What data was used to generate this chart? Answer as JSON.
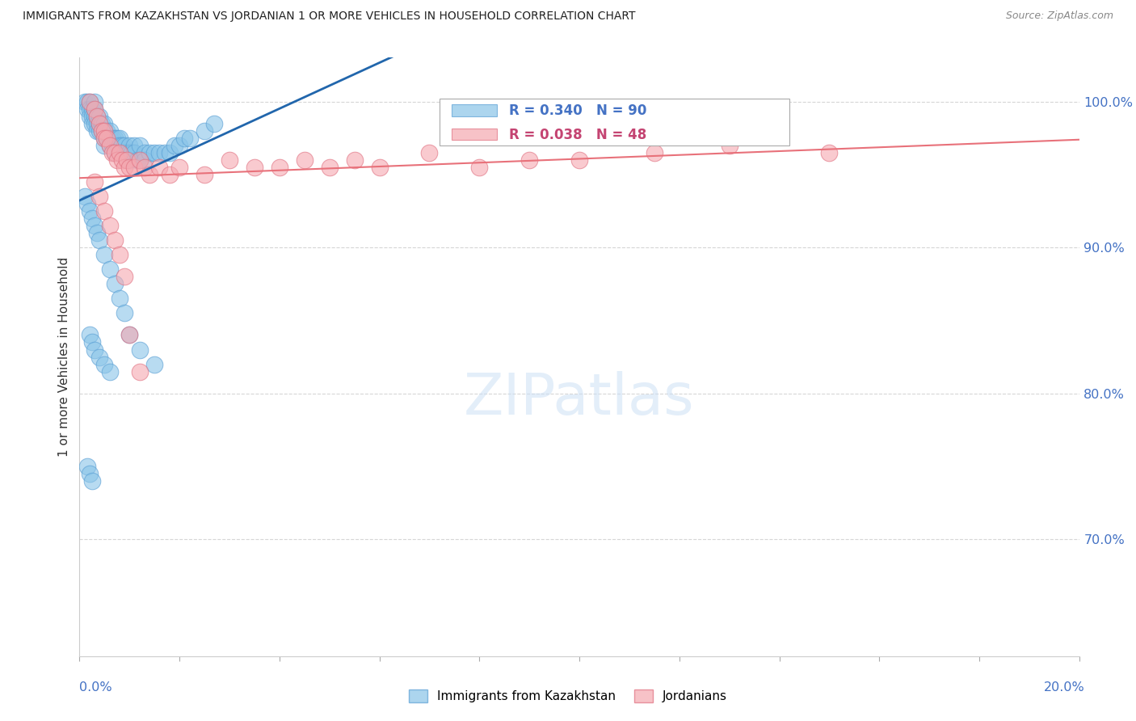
{
  "title": "IMMIGRANTS FROM KAZAKHSTAN VS JORDANIAN 1 OR MORE VEHICLES IN HOUSEHOLD CORRELATION CHART",
  "source": "Source: ZipAtlas.com",
  "ylabel": "1 or more Vehicles in Household",
  "legend_blue_label": "Immigrants from Kazakhstan",
  "legend_pink_label": "Jordanians",
  "blue_color": "#89c4e8",
  "blue_edge_color": "#5a9fd4",
  "pink_color": "#f5a8b0",
  "pink_edge_color": "#e07080",
  "blue_line_color": "#2166ac",
  "pink_line_color": "#e8717a",
  "x_min": 0.0,
  "x_max": 20.0,
  "y_min": 62.0,
  "y_max": 103.0,
  "blue_scatter_x": [
    0.1,
    0.15,
    0.15,
    0.2,
    0.2,
    0.2,
    0.25,
    0.25,
    0.25,
    0.3,
    0.3,
    0.3,
    0.3,
    0.35,
    0.35,
    0.35,
    0.4,
    0.4,
    0.4,
    0.45,
    0.45,
    0.5,
    0.5,
    0.5,
    0.5,
    0.55,
    0.55,
    0.6,
    0.6,
    0.6,
    0.65,
    0.65,
    0.7,
    0.7,
    0.7,
    0.75,
    0.75,
    0.8,
    0.8,
    0.85,
    0.85,
    0.9,
    0.9,
    0.95,
    1.0,
    1.0,
    1.0,
    1.05,
    1.1,
    1.1,
    1.15,
    1.2,
    1.2,
    1.3,
    1.3,
    1.4,
    1.5,
    1.6,
    1.7,
    1.8,
    1.9,
    2.0,
    2.1,
    2.2,
    2.5,
    2.7,
    0.1,
    0.15,
    0.2,
    0.25,
    0.3,
    0.35,
    0.4,
    0.5,
    0.6,
    0.7,
    0.8,
    0.9,
    1.0,
    1.2,
    1.5,
    0.2,
    0.25,
    0.3,
    0.4,
    0.5,
    0.6,
    0.15,
    0.2,
    0.25
  ],
  "blue_scatter_y": [
    100.0,
    100.0,
    99.5,
    100.0,
    99.5,
    99.0,
    99.5,
    99.0,
    98.5,
    100.0,
    99.5,
    99.0,
    98.5,
    99.0,
    98.5,
    98.0,
    99.0,
    98.5,
    98.0,
    98.5,
    98.0,
    98.5,
    98.0,
    97.5,
    97.0,
    98.0,
    97.5,
    98.0,
    97.5,
    97.0,
    97.5,
    97.0,
    97.5,
    97.0,
    96.5,
    97.5,
    97.0,
    97.5,
    97.0,
    97.0,
    96.5,
    97.0,
    96.5,
    96.5,
    97.0,
    96.5,
    96.0,
    96.5,
    97.0,
    96.5,
    96.0,
    97.0,
    96.0,
    96.5,
    96.0,
    96.5,
    96.5,
    96.5,
    96.5,
    96.5,
    97.0,
    97.0,
    97.5,
    97.5,
    98.0,
    98.5,
    93.5,
    93.0,
    92.5,
    92.0,
    91.5,
    91.0,
    90.5,
    89.5,
    88.5,
    87.5,
    86.5,
    85.5,
    84.0,
    83.0,
    82.0,
    84.0,
    83.5,
    83.0,
    82.5,
    82.0,
    81.5,
    75.0,
    74.5,
    74.0
  ],
  "pink_scatter_x": [
    0.2,
    0.3,
    0.35,
    0.4,
    0.45,
    0.5,
    0.5,
    0.55,
    0.6,
    0.65,
    0.7,
    0.75,
    0.8,
    0.85,
    0.9,
    0.95,
    1.0,
    1.1,
    1.2,
    1.3,
    1.4,
    1.6,
    1.8,
    2.0,
    2.5,
    3.0,
    3.5,
    4.0,
    4.5,
    5.0,
    5.5,
    6.0,
    7.0,
    8.0,
    9.0,
    10.0,
    11.5,
    13.0,
    15.0,
    0.3,
    0.4,
    0.5,
    0.6,
    0.7,
    0.8,
    0.9,
    1.0,
    1.2
  ],
  "pink_scatter_y": [
    100.0,
    99.5,
    99.0,
    98.5,
    98.0,
    98.0,
    97.5,
    97.5,
    97.0,
    96.5,
    96.5,
    96.0,
    96.5,
    96.0,
    95.5,
    96.0,
    95.5,
    95.5,
    96.0,
    95.5,
    95.0,
    95.5,
    95.0,
    95.5,
    95.0,
    96.0,
    95.5,
    95.5,
    96.0,
    95.5,
    96.0,
    95.5,
    96.5,
    95.5,
    96.0,
    96.0,
    96.5,
    97.0,
    96.5,
    94.5,
    93.5,
    92.5,
    91.5,
    90.5,
    89.5,
    88.0,
    84.0,
    81.5
  ],
  "yticks": [
    70,
    80,
    90,
    100
  ],
  "ytick_labels": [
    "70.0%",
    "80.0%",
    "90.0%",
    "100.0%"
  ]
}
